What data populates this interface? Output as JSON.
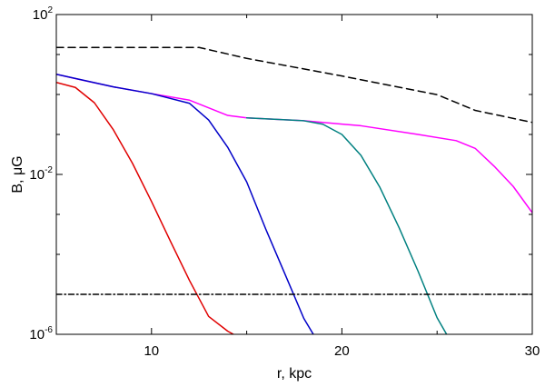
{
  "chart_data": {
    "type": "line",
    "title": "",
    "xlabel": "r, kpc",
    "ylabel_base": "B, ",
    "ylabel_unit_prefix": "μ",
    "ylabel_unit": "G",
    "xlim": [
      5,
      30
    ],
    "ylim": [
      1e-06,
      100
    ],
    "yscale": "log",
    "grid": false,
    "legend": "none",
    "x_ticks": [
      {
        "value": 10,
        "label": "10"
      },
      {
        "value": 20,
        "label": "20"
      },
      {
        "value": 30,
        "label": "30"
      }
    ],
    "y_ticks": [
      {
        "value": 100,
        "base": "10",
        "exp": "2"
      },
      {
        "value": 0.01,
        "base": "10",
        "exp": "-2"
      },
      {
        "value": 1e-06,
        "base": "10",
        "exp": "-6"
      }
    ],
    "x_minor_ticks": [
      5,
      15,
      25
    ],
    "y_minor_ticks": [
      10,
      1,
      0.1,
      0.001,
      0.0001,
      1e-05
    ],
    "series": [
      {
        "color": "#000000",
        "dash": "8,5",
        "points": [
          [
            5,
            15
          ],
          [
            7,
            15
          ],
          [
            10,
            15
          ],
          [
            12.5,
            15
          ],
          [
            15,
            8
          ],
          [
            20,
            2.9
          ],
          [
            25,
            0.99
          ],
          [
            27,
            0.4
          ],
          [
            30,
            0.2
          ]
        ]
      },
      {
        "color": "#ff00ff",
        "dash": "",
        "points": [
          [
            5,
            3.2
          ],
          [
            6,
            2.5
          ],
          [
            8,
            1.55
          ],
          [
            10,
            1.05
          ],
          [
            12,
            0.72
          ],
          [
            14,
            0.3
          ],
          [
            15,
            0.26
          ],
          [
            18,
            0.22
          ],
          [
            21,
            0.165
          ],
          [
            24,
            0.1
          ],
          [
            26,
            0.07
          ],
          [
            27,
            0.045
          ],
          [
            28,
            0.016
          ],
          [
            29,
            0.005
          ],
          [
            30,
            0.0011
          ]
        ]
      },
      {
        "color": "#0000c8",
        "dash": "",
        "points": [
          [
            5,
            3.2
          ],
          [
            8,
            1.55
          ],
          [
            10,
            1.05
          ],
          [
            12,
            0.6
          ],
          [
            13,
            0.23
          ],
          [
            14,
            0.048
          ],
          [
            15,
            0.0065
          ],
          [
            16,
            0.00043
          ],
          [
            17,
            3.3e-05
          ],
          [
            18,
            2.5e-06
          ],
          [
            18.5,
            1e-06
          ]
        ]
      },
      {
        "color": "#008080",
        "dash": "",
        "points": [
          [
            15,
            0.26
          ],
          [
            18,
            0.22
          ],
          [
            19,
            0.18
          ],
          [
            20,
            0.1
          ],
          [
            21,
            0.03
          ],
          [
            22,
            0.0047
          ],
          [
            23,
            0.00047
          ],
          [
            24,
            3.8e-05
          ],
          [
            25,
            2.6e-06
          ],
          [
            25.5,
            1e-06
          ]
        ]
      },
      {
        "color": "#e00000",
        "dash": "",
        "points": [
          [
            5,
            2.0
          ],
          [
            6,
            1.5
          ],
          [
            7,
            0.62
          ],
          [
            8,
            0.13
          ],
          [
            9,
            0.019
          ],
          [
            10,
            0.0021
          ],
          [
            11,
            0.00021
          ],
          [
            12,
            2.2e-05
          ],
          [
            13,
            2.8e-06
          ],
          [
            14,
            1.2e-06
          ],
          [
            14.3,
            1e-06
          ]
        ]
      },
      {
        "color": "#000000",
        "dash": "6,3,1.5,3",
        "points": [
          [
            5,
            1e-05
          ],
          [
            30,
            1e-05
          ]
        ]
      }
    ]
  }
}
